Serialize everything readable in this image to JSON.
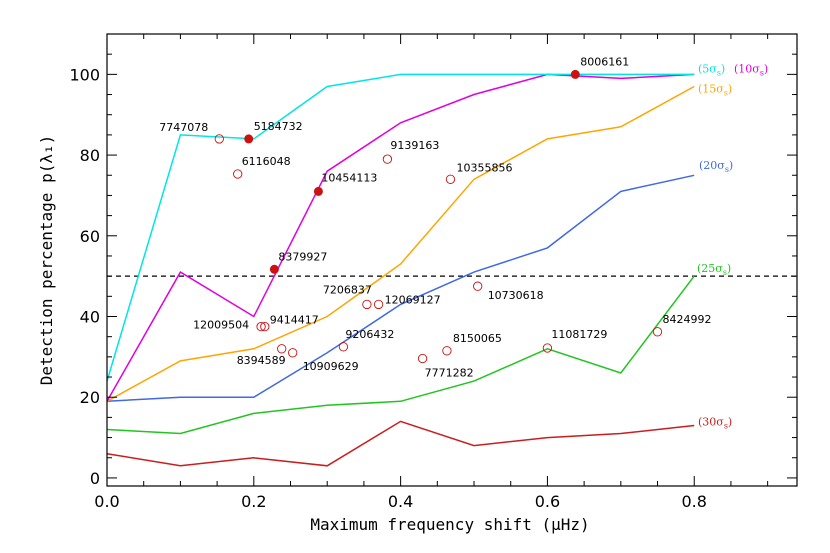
{
  "chart_data": {
    "type": "line",
    "title": "",
    "xlabel": "Maximum frequency shift (μHz)",
    "ylabel": "Detection percentage p(λ₁)",
    "xlim": [
      0.0,
      0.94
    ],
    "ylim": [
      -2,
      110
    ],
    "grid": false,
    "x_ticks": [
      0.0,
      0.2,
      0.4,
      0.6,
      0.8
    ],
    "x_tick_labels": [
      "0.0",
      "0.2",
      "0.4",
      "0.6",
      "0.8"
    ],
    "y_ticks": [
      0,
      20,
      40,
      60,
      80,
      100
    ],
    "y_tick_labels": [
      "0",
      "20",
      "40",
      "60",
      "80",
      "100"
    ],
    "x": [
      0.0,
      0.1,
      0.2,
      0.3,
      0.4,
      0.5,
      0.6,
      0.7,
      0.8
    ],
    "series": [
      {
        "name": "(5σ_s)",
        "color": "#00e5e5",
        "values": [
          24,
          85,
          84,
          97,
          100,
          100,
          100,
          100,
          100
        ]
      },
      {
        "name": "(10σ_s)",
        "color": "#e000e0",
        "values": [
          19,
          51,
          40,
          76,
          88,
          95,
          100,
          99,
          100
        ]
      },
      {
        "name": "(15σ_s)",
        "color": "#ffa500",
        "values": [
          19,
          29,
          32,
          40,
          53,
          74,
          84,
          87,
          97
        ]
      },
      {
        "name": "(20σ_s)",
        "color": "#4169e1",
        "values": [
          19,
          20,
          20,
          31,
          43,
          51,
          57,
          71,
          75
        ]
      },
      {
        "name": "(25σ_s)",
        "color": "#22c422",
        "values": [
          12,
          11,
          16,
          18,
          19,
          24,
          32,
          26,
          50
        ]
      },
      {
        "name": "(30σ_s)",
        "color": "#c81e1e",
        "values": [
          6,
          3,
          5,
          3,
          14,
          8,
          10,
          11,
          13
        ]
      }
    ],
    "reference_line": {
      "y": 50,
      "style": "dashed",
      "color": "#000000"
    },
    "stars": [
      {
        "id": "7747078",
        "x": 0.153,
        "y": 84,
        "filled": false
      },
      {
        "id": "5184732",
        "x": 0.193,
        "y": 84,
        "filled": true
      },
      {
        "id": "6116048",
        "x": 0.178,
        "y": 75.3,
        "filled": false
      },
      {
        "id": "10454113",
        "x": 0.288,
        "y": 71,
        "filled": true
      },
      {
        "id": "9139163",
        "x": 0.382,
        "y": 79,
        "filled": false
      },
      {
        "id": "10355856",
        "x": 0.468,
        "y": 74,
        "filled": false
      },
      {
        "id": "8006161",
        "x": 0.638,
        "y": 100,
        "filled": true
      },
      {
        "id": "8379927",
        "x": 0.228,
        "y": 51.7,
        "filled": true
      },
      {
        "id": "7206837",
        "x": 0.354,
        "y": 43,
        "filled": false
      },
      {
        "id": "12069127",
        "x": 0.37,
        "y": 43,
        "filled": false
      },
      {
        "id": "10730618",
        "x": 0.505,
        "y": 47.5,
        "filled": false
      },
      {
        "id": "12009504",
        "x": 0.21,
        "y": 37.5,
        "filled": false
      },
      {
        "id": "9414417",
        "x": 0.215,
        "y": 37.5,
        "filled": false
      },
      {
        "id": "8394589",
        "x": 0.238,
        "y": 32,
        "filled": false
      },
      {
        "id": "10909629",
        "x": 0.253,
        "y": 31,
        "filled": false
      },
      {
        "id": "9206432",
        "x": 0.322,
        "y": 32.5,
        "filled": false
      },
      {
        "id": "7771282",
        "x": 0.43,
        "y": 29.6,
        "filled": false
      },
      {
        "id": "8150065",
        "x": 0.463,
        "y": 31.5,
        "filled": false
      },
      {
        "id": "11081729",
        "x": 0.6,
        "y": 32.2,
        "filled": false
      },
      {
        "id": "8424992",
        "x": 0.75,
        "y": 36.2,
        "filled": false
      }
    ],
    "star_marker_color": "#cc1111"
  }
}
